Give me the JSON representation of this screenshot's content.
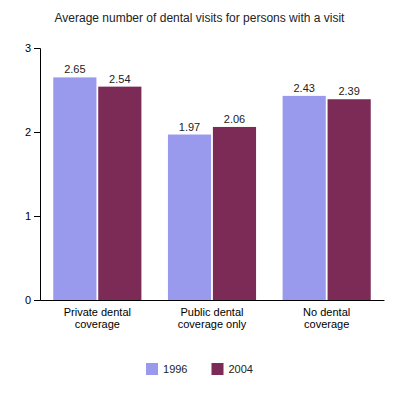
{
  "chart_data": {
    "type": "bar",
    "title": "Average number of dental visits for persons with a visit",
    "categories": [
      "Private dental\ncoverage",
      "Public dental\ncoverage only",
      "No dental\ncoverage"
    ],
    "series": [
      {
        "name": "1996",
        "color": "#9999ee",
        "values": [
          2.65,
          1.97,
          2.43
        ]
      },
      {
        "name": "2004",
        "color": "#7b2b55",
        "values": [
          2.54,
          2.06,
          2.39
        ]
      }
    ],
    "ylim": [
      0,
      3
    ],
    "yticks": [
      0,
      1,
      2,
      3
    ],
    "grid": false,
    "legend": "bottom",
    "data_labels": true
  }
}
